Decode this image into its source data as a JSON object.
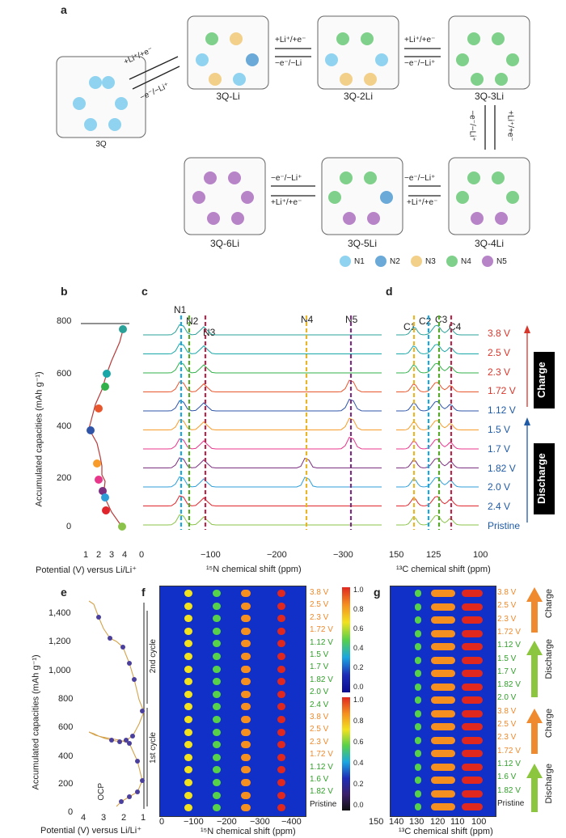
{
  "panel_a": {
    "label": "a",
    "molecules": [
      "3Q",
      "3Q-Li",
      "3Q-2Li",
      "3Q-3Li",
      "3Q-4Li",
      "3Q-5Li",
      "3Q-6Li"
    ],
    "arrows": {
      "a1_fwd": "+Li⁺/+e⁻",
      "a1_rev": "−e⁻/−Li⁺",
      "a2_fwd": "+Li⁺/+e⁻",
      "a2_rev": "−e⁻/−Li",
      "a3_fwd": "+Li⁺/+e⁻",
      "a3_rev": "−e⁻/−Li⁺",
      "a4_fwd": "+Li⁺/+e⁻",
      "a4_rev": "−e⁻/−Li⁺",
      "a5_fwd": "+Li⁺/+e⁻",
      "a5_rev": "−e⁻/−Li⁺",
      "a6_fwd": "+Li⁺/+e⁻",
      "a6_rev": "−e⁻/−Li⁺"
    },
    "legend": [
      {
        "label": "N1",
        "color": "#8fd3f0"
      },
      {
        "label": "N2",
        "color": "#6aa9d8"
      },
      {
        "label": "N3",
        "color": "#f2d08a"
      },
      {
        "label": "N4",
        "color": "#7fd08a"
      },
      {
        "label": "N5",
        "color": "#b784c8"
      }
    ]
  },
  "panel_b": {
    "label": "b",
    "ylabel": "Accumulated capacities (mAh g⁻¹)",
    "xlabel": "Potential (V) versus Li/Li⁺",
    "yticks": [
      "0",
      "200",
      "400",
      "600",
      "800"
    ],
    "xticks": [
      "1",
      "2",
      "3",
      "4"
    ]
  },
  "panel_c": {
    "label": "c",
    "xlabel": "¹⁵N chemical shift (ppm)",
    "xticks": [
      "0",
      "−100",
      "−200",
      "−300"
    ],
    "peaks": [
      "N1",
      "N2",
      "N3",
      "N4",
      "N5"
    ]
  },
  "panel_d": {
    "label": "d",
    "xlabel": "¹³C chemical shift (ppm)",
    "xticks": [
      "150",
      "125",
      "100"
    ],
    "peaks": [
      "C1",
      "C2",
      "C3",
      "C4"
    ],
    "voltages": [
      "3.8 V",
      "2.5 V",
      "2.3 V",
      "1.72 V",
      "1.12 V",
      "1.5 V",
      "1.7 V",
      "1.82 V",
      "2.0 V",
      "2.4 V",
      "Pristine"
    ],
    "charge_label": "Charge",
    "discharge_label": "Discharge"
  },
  "panel_e": {
    "label": "e",
    "ylabel": "Accumulated capacities (mAh g⁻¹)",
    "xlabel": "Potential (V) versus Li/Li⁺",
    "yticks": [
      "0",
      "200",
      "400",
      "600",
      "800",
      "1,000",
      "1,200",
      "1,400"
    ],
    "xticks": [
      "4",
      "3",
      "2",
      "1"
    ],
    "ocp": "OCP",
    "first_cycle": "1st cycle",
    "second_cycle": "2nd cycle"
  },
  "panel_f": {
    "label": "f",
    "xlabel": "¹⁵N chemical shift (ppm)",
    "xticks": [
      "0",
      "−100",
      "−200",
      "−300",
      "−400"
    ],
    "voltages": [
      "3.8 V",
      "2.5 V",
      "2.3 V",
      "1.72 V",
      "1.12 V",
      "1.5 V",
      "1.7 V",
      "1.82 V",
      "2.0 V",
      "2.4 V",
      "3.8 V",
      "2.5 V",
      "2.3 V",
      "1.72 V",
      "1.12 V",
      "1.6 V",
      "1.82 V",
      "Pristine"
    ],
    "scale1": [
      "1.0",
      "0.8",
      "0.6",
      "0.4",
      "0.2",
      "0.0"
    ],
    "scale2": [
      "1.0",
      "0.8",
      "0.6",
      "0.4",
      "0.2",
      "0.0"
    ]
  },
  "panel_g": {
    "label": "g",
    "xlabel": "¹³C chemical shift (ppm)",
    "xticks": [
      "150",
      "140",
      "130",
      "120",
      "110",
      "100"
    ],
    "voltages": [
      "3.8 V",
      "2.5 V",
      "2.3 V",
      "1.72 V",
      "1.12 V",
      "1.5 V",
      "1.7 V",
      "1.82 V",
      "2.0 V",
      "3.8 V",
      "2.5 V",
      "2.3 V",
      "1.72 V",
      "1.12 V",
      "1.6 V",
      "1.82 V",
      "Pristine"
    ],
    "side_labels": [
      "Charge",
      "Discharge",
      "Charge",
      "Discharge"
    ]
  },
  "colors": {
    "charge_red": "#d9362b",
    "discharge_blue": "#1f5aa6",
    "discharge_green": "#33a02c",
    "heat_bg": "#1030c8"
  }
}
